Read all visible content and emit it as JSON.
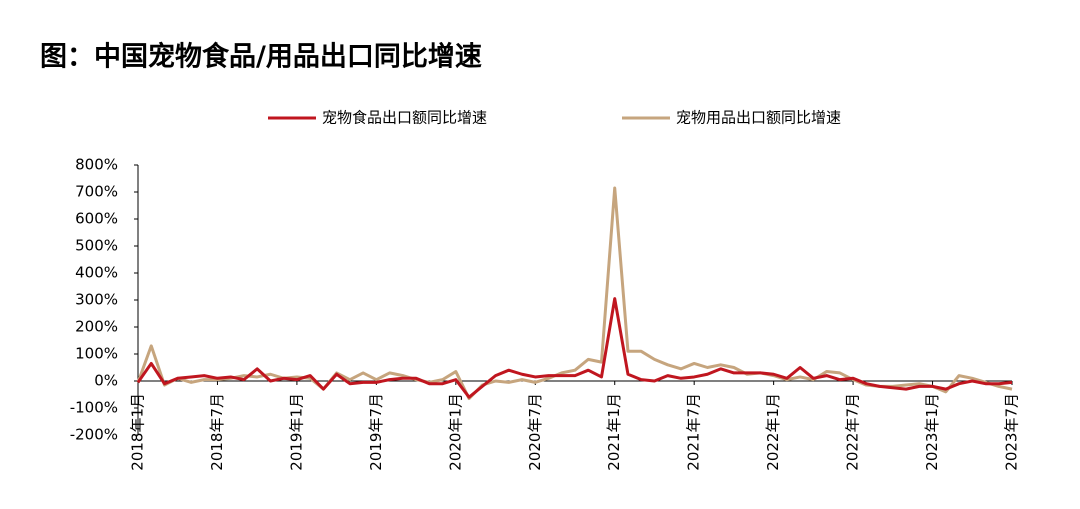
{
  "chart_data": {
    "type": "line",
    "title": "图：中国宠物食品/用品出口同比增速",
    "categories": [
      "2018年1月",
      null,
      null,
      null,
      null,
      null,
      "2018年7月",
      null,
      null,
      null,
      null,
      null,
      "2019年1月",
      null,
      null,
      null,
      null,
      null,
      "2019年7月",
      null,
      null,
      null,
      null,
      null,
      "2020年1月",
      null,
      null,
      null,
      null,
      null,
      "2020年7月",
      null,
      null,
      null,
      null,
      null,
      "2021年1月",
      null,
      null,
      null,
      null,
      null,
      "2021年7月",
      null,
      null,
      null,
      null,
      null,
      "2022年1月",
      null,
      null,
      null,
      null,
      null,
      "2022年7月",
      null,
      null,
      null,
      null,
      null,
      "2023年1月",
      null,
      null,
      null,
      null,
      null,
      "2023年7月"
    ],
    "series": [
      {
        "name": "宠物食品出口额同比增速",
        "color": "#c0161f",
        "values": [
          -5,
          65,
          -10,
          10,
          15,
          20,
          10,
          15,
          5,
          45,
          0,
          10,
          5,
          20,
          -30,
          25,
          -10,
          -5,
          -5,
          5,
          10,
          10,
          -10,
          -10,
          5,
          -60,
          -20,
          20,
          40,
          25,
          15,
          20,
          20,
          20,
          40,
          15,
          305,
          25,
          5,
          0,
          20,
          10,
          15,
          25,
          45,
          30,
          30,
          30,
          25,
          10,
          50,
          10,
          20,
          5,
          10,
          -10,
          -20,
          -25,
          -30,
          -20,
          -20,
          -30,
          -10,
          0,
          -10,
          -10,
          -5
        ]
      },
      {
        "name": "宠物用品出口额同比增速",
        "color": "#c6a57e",
        "values": [
          -5,
          130,
          -15,
          10,
          -5,
          5,
          5,
          10,
          20,
          15,
          25,
          10,
          15,
          10,
          -30,
          30,
          5,
          30,
          5,
          30,
          20,
          5,
          -5,
          5,
          35,
          -65,
          -15,
          0,
          -5,
          5,
          -5,
          10,
          30,
          40,
          80,
          70,
          715,
          110,
          110,
          80,
          60,
          45,
          65,
          50,
          60,
          50,
          25,
          30,
          20,
          5,
          15,
          5,
          35,
          30,
          5,
          -15,
          -20,
          -20,
          -15,
          -10,
          -20,
          -40,
          20,
          10,
          -5,
          -20,
          -30
        ]
      }
    ],
    "ylim": [
      -200,
      800
    ],
    "yticks": [
      {
        "value": -200,
        "label": "-200%"
      },
      {
        "value": -100,
        "label": "-100%"
      },
      {
        "value": 0,
        "label": "0%"
      },
      {
        "value": 100,
        "label": "100%"
      },
      {
        "value": 200,
        "label": "200%"
      },
      {
        "value": 300,
        "label": "300%"
      },
      {
        "value": 400,
        "label": "400%"
      },
      {
        "value": 500,
        "label": "500%"
      },
      {
        "value": 600,
        "label": "600%"
      },
      {
        "value": 700,
        "label": "700%"
      },
      {
        "value": 800,
        "label": "800%"
      }
    ],
    "legend": "top"
  }
}
